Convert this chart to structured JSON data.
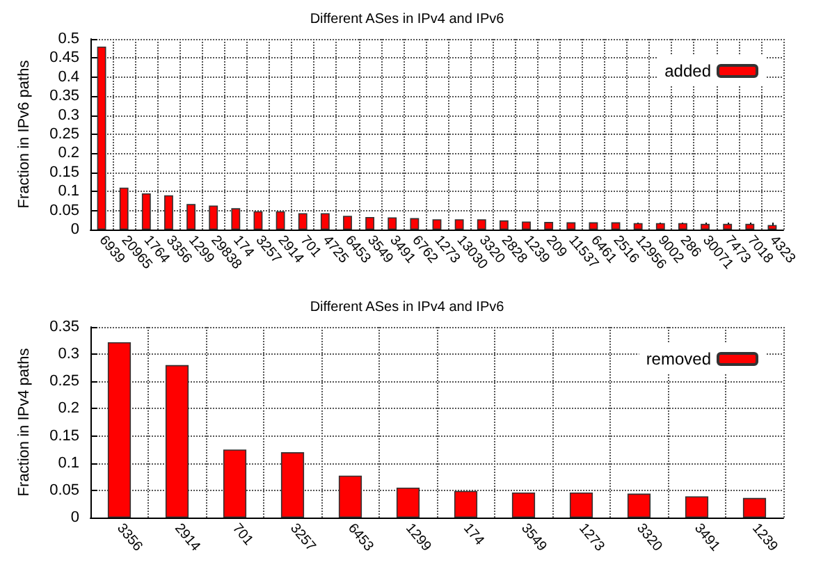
{
  "chart_data": [
    {
      "type": "bar",
      "title": "Different ASes in IPv4 and IPv6",
      "ylabel": "Fraction in IPv6 paths",
      "categories": [
        "6939",
        "20965",
        "1764",
        "3356",
        "1299",
        "29838",
        "174",
        "3257",
        "2914",
        "701",
        "4725",
        "6453",
        "3549",
        "3491",
        "6762",
        "1273",
        "13030",
        "3320",
        "2828",
        "1239",
        "209",
        "11537",
        "6461",
        "2516",
        "12956",
        "9002",
        "286",
        "30071",
        "7473",
        "7018",
        "4323"
      ],
      "series": [
        {
          "name": "added",
          "color": "#ff0000",
          "values": [
            0.48,
            0.11,
            0.095,
            0.09,
            0.067,
            0.063,
            0.056,
            0.048,
            0.048,
            0.043,
            0.043,
            0.036,
            0.033,
            0.032,
            0.03,
            0.027,
            0.027,
            0.027,
            0.024,
            0.021,
            0.02,
            0.019,
            0.019,
            0.019,
            0.017,
            0.017,
            0.017,
            0.015,
            0.015,
            0.015,
            0.012
          ]
        }
      ],
      "ylim": [
        0,
        0.5
      ],
      "yticks": [
        0,
        0.05,
        0.1,
        0.15,
        0.2,
        0.25,
        0.3,
        0.35,
        0.4,
        0.45,
        0.5
      ],
      "grid": true,
      "legend": "top right"
    },
    {
      "type": "bar",
      "title": "Different ASes in IPv4 and IPv6",
      "ylabel": "Fraction in IPv4 paths",
      "categories": [
        "3356",
        "2914",
        "701",
        "3257",
        "6453",
        "1299",
        "174",
        "3549",
        "1273",
        "3320",
        "3491",
        "1239"
      ],
      "series": [
        {
          "name": "removed",
          "color": "#ff0000",
          "values": [
            0.322,
            0.28,
            0.125,
            0.12,
            0.077,
            0.055,
            0.049,
            0.046,
            0.046,
            0.044,
            0.039,
            0.036
          ]
        }
      ],
      "ylim": [
        0,
        0.35
      ],
      "yticks": [
        0,
        0.05,
        0.1,
        0.15,
        0.2,
        0.25,
        0.3,
        0.35
      ],
      "grid": true,
      "legend": "top right"
    }
  ]
}
